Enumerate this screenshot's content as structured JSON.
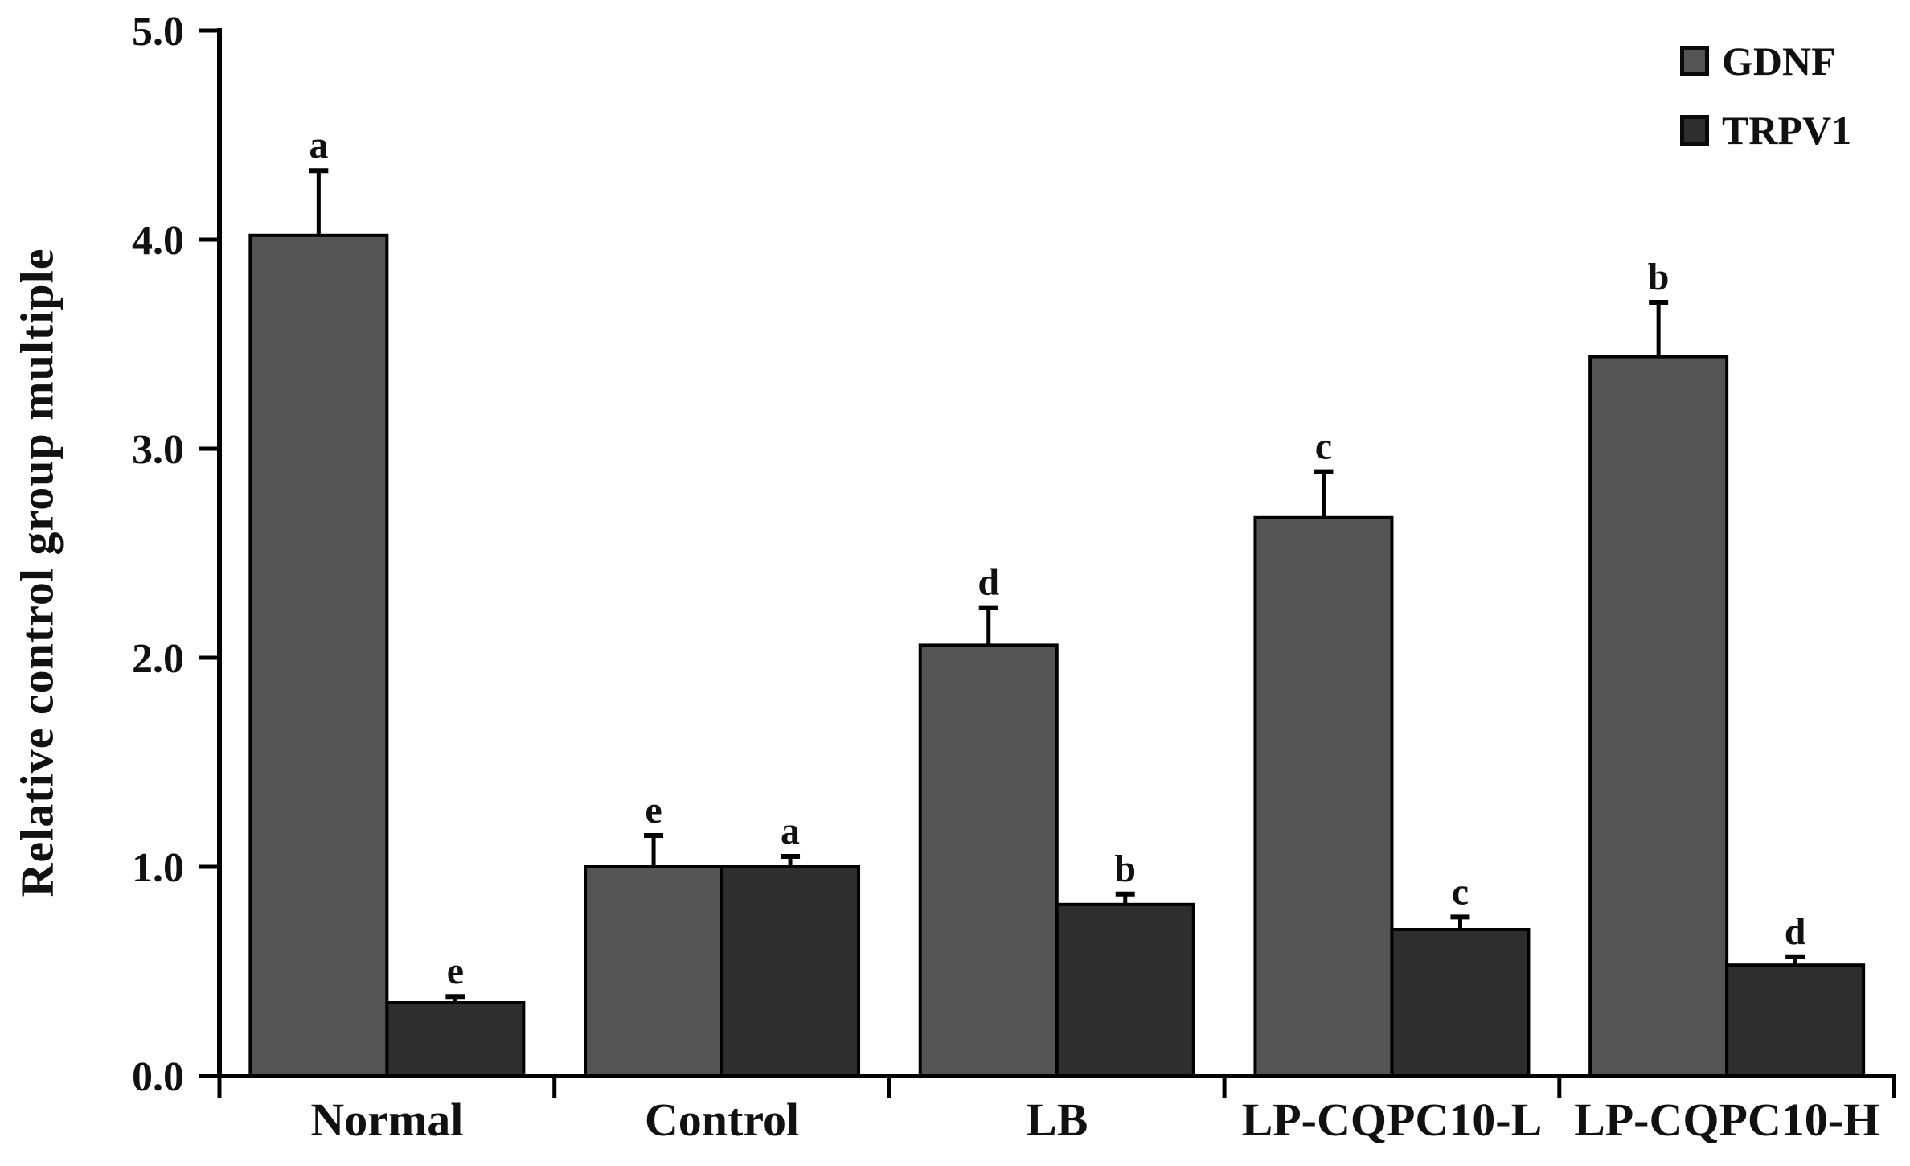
{
  "figure": {
    "background": "#ffffff",
    "axis_color": "#000000",
    "text_color": "#111111"
  },
  "chart_data": {
    "type": "bar",
    "title": "",
    "xlabel": "",
    "ylabel": "Relative control group multiple",
    "categories": [
      "Normal",
      "Control",
      "LB",
      "LP-CQPC10-L",
      "LP-CQPC10-H"
    ],
    "series": [
      {
        "name": "GDNF",
        "color": "#545454",
        "values": [
          4.02,
          1.0,
          2.06,
          2.67,
          3.44
        ],
        "errors": [
          0.31,
          0.15,
          0.18,
          0.22,
          0.26
        ],
        "letters": [
          "a",
          "e",
          "d",
          "c",
          "b"
        ]
      },
      {
        "name": "TRPV1",
        "color": "#2e2e2e",
        "values": [
          0.35,
          1.0,
          0.82,
          0.7,
          0.53
        ],
        "errors": [
          0.03,
          0.05,
          0.05,
          0.06,
          0.04
        ],
        "letters": [
          "e",
          "a",
          "b",
          "c",
          "d"
        ]
      }
    ],
    "ylim": [
      0.0,
      5.0
    ],
    "yticks": [
      "0.0",
      "1.0",
      "2.0",
      "3.0",
      "4.0",
      "5.0"
    ],
    "grid": false,
    "error_bars": true,
    "legend_position": "top-right",
    "bar_edge_color": "#000000"
  }
}
